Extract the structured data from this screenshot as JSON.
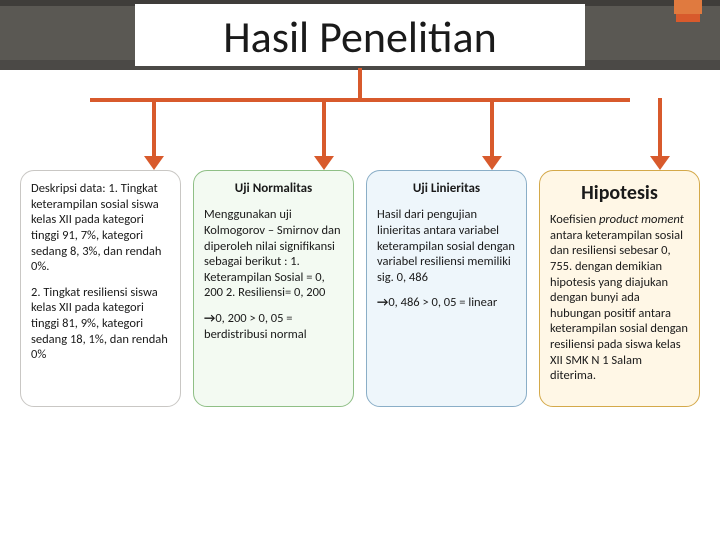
{
  "title": "Hasil Penelitian",
  "accent_color": "#d85a2c",
  "columns": [
    {
      "id": "deskripsi",
      "bg": "#ffffff",
      "border": "#c9c7c4",
      "heading": null,
      "paras": [
        "Deskripsi data: 1. Tingkat keterampilan sosial siswa kelas XII pada kategori tinggi 91, 7%, kategori sedang 8, 3%, dan rendah 0%.",
        "2. Tingkat resiliensi siswa kelas XII pada kategori tinggi 81, 9%, kategori sedang 18, 1%, dan rendah 0%"
      ]
    },
    {
      "id": "normalitas",
      "bg": "#f3faf2",
      "border": "#8fbf86",
      "heading": "Uji  Normalitas",
      "paras": [
        "Menggunakan uji Kolmogorov – Smirnov dan diperoleh nilai signifikansi sebagai berikut : 1. Keterampilan Sosial = 0, 200 2. Resiliensi= 0, 200"
      ],
      "arrow_para": "0, 200 > 0, 05 = berdistribusi normal"
    },
    {
      "id": "linieritas",
      "bg": "#eef6fb",
      "border": "#8aaec7",
      "heading": "Uji Linieritas",
      "paras": [
        "Hasil dari pengujian linieritas antara variabel keterampilan sosial dengan variabel resiliensi memiliki sig. 0, 486"
      ],
      "arrow_para": "0, 486 > 0, 05 = linear"
    },
    {
      "id": "hipotesis",
      "bg": "#fff7e6",
      "border": "#d4a94a",
      "big_heading": "Hipotesis",
      "html_para": "Koefisien <em class='pm'>product moment</em> antara keterampilan sosial dan resiliensi sebesar 0, 755. dengan demikian hipotesis yang diajukan dengan bunyi ada hubungan positif antara keterampilan sosial dengan resiliensi pada siswa kelas XII SMK N 1 Salam diterima."
    }
  ],
  "arrows_x": [
    62,
    232,
    400,
    568
  ]
}
